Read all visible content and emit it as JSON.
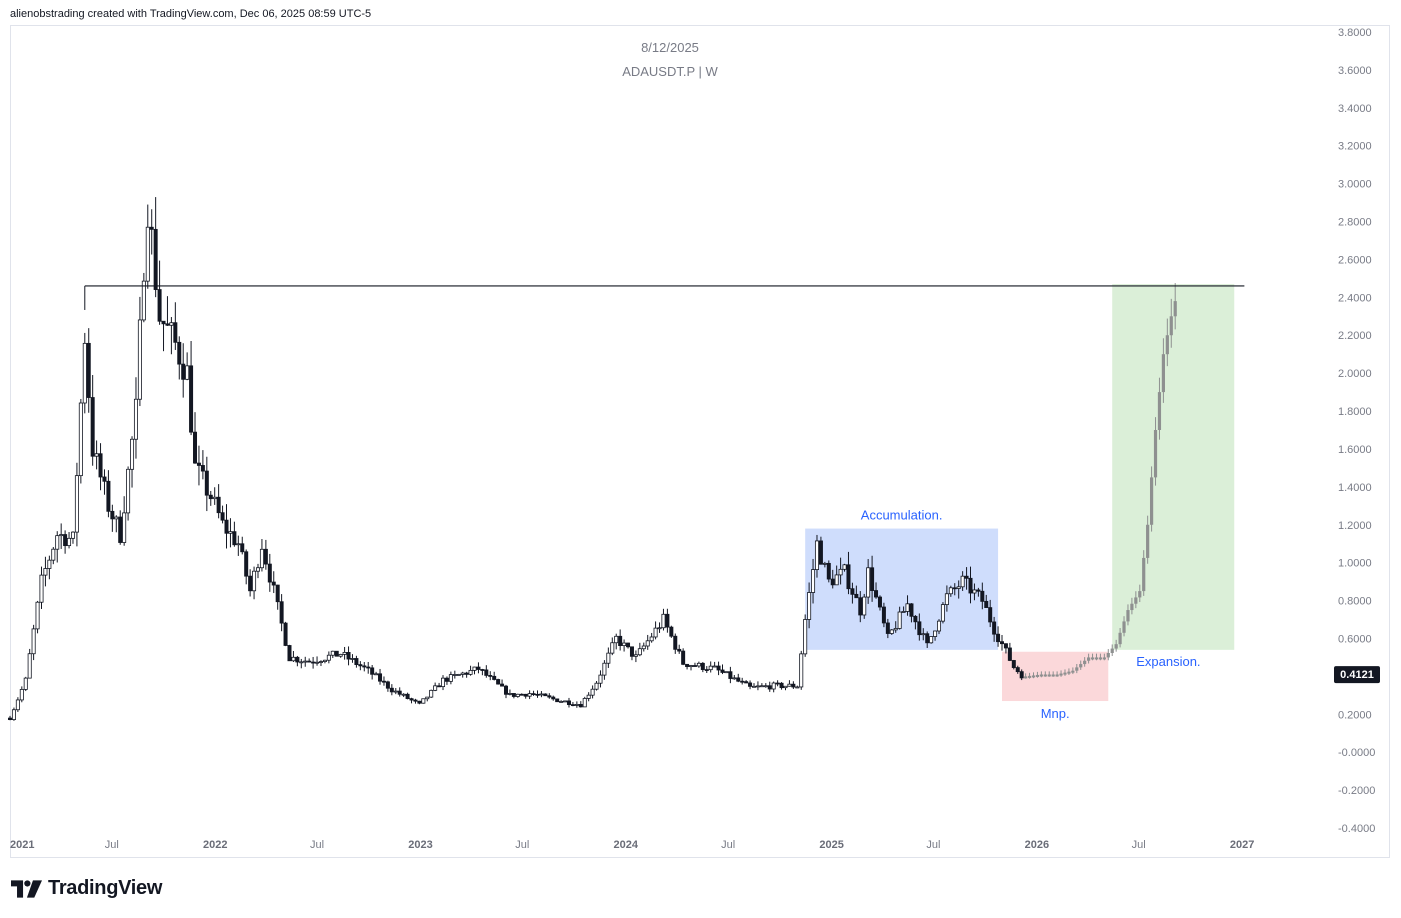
{
  "header": {
    "attribution": "alienobstrading created with TradingView.com, Dec 06, 2025 08:59 UTC-5"
  },
  "chart_title": {
    "date": "8/12/2025",
    "symbol": "ADAUSDT.P | W"
  },
  "branding": {
    "logo_text": "TradingView",
    "logo_icon": "tradingview-logo-icon"
  },
  "colors": {
    "candle": "#131722",
    "projection": "#8e9090",
    "accumulation_zone": "#bcd0fb",
    "manipulation_zone": "#f9c9cc",
    "expansion_zone": "#cfe9cb",
    "annotation": "#2962ff",
    "price_label_bg": "#131722"
  },
  "chart_data": {
    "type": "candlestick",
    "timeframe": "W",
    "symbol": "ADAUSDT.P",
    "y_axis": {
      "ylim": [
        -0.4,
        3.8
      ],
      "ticks": [
        "3.8000",
        "3.6000",
        "3.4000",
        "3.2000",
        "3.0000",
        "2.8000",
        "2.6000",
        "2.4000",
        "2.2000",
        "2.0000",
        "1.8000",
        "1.6000",
        "1.4000",
        "1.2000",
        "1.0000",
        "0.8000",
        "0.6000",
        "0.4000",
        "0.2000",
        "-0.0000",
        "-0.2000",
        "-0.4000"
      ]
    },
    "x_axis": {
      "range": [
        "2021-01-01",
        "2027-01-15"
      ],
      "ticks": [
        {
          "label": "2021",
          "date": "2021-01-01",
          "major": true
        },
        {
          "label": "Jul",
          "date": "2021-07-01",
          "major": false
        },
        {
          "label": "2022",
          "date": "2022-01-01",
          "major": true
        },
        {
          "label": "Jul",
          "date": "2022-07-01",
          "major": false
        },
        {
          "label": "2023",
          "date": "2023-01-01",
          "major": true
        },
        {
          "label": "Jul",
          "date": "2023-07-01",
          "major": false
        },
        {
          "label": "2024",
          "date": "2024-01-01",
          "major": true
        },
        {
          "label": "Jul",
          "date": "2024-07-01",
          "major": false
        },
        {
          "label": "2025",
          "date": "2025-01-01",
          "major": true
        },
        {
          "label": "Jul",
          "date": "2025-07-01",
          "major": false
        },
        {
          "label": "2026",
          "date": "2026-01-01",
          "major": true
        },
        {
          "label": "Jul",
          "date": "2026-07-01",
          "major": false
        },
        {
          "label": "2027",
          "date": "2027-01-01",
          "major": true
        }
      ]
    },
    "price_path_anchors": [
      [
        "2021-01-01",
        0.18
      ],
      [
        "2021-01-29",
        0.38
      ],
      [
        "2021-02-26",
        0.9
      ],
      [
        "2021-03-26",
        1.15
      ],
      [
        "2021-04-23",
        1.12
      ],
      [
        "2021-05-14",
        2.2
      ],
      [
        "2021-05-28",
        1.6
      ],
      [
        "2021-06-25",
        1.3
      ],
      [
        "2021-07-16",
        1.15
      ],
      [
        "2021-08-13",
        1.8
      ],
      [
        "2021-08-27",
        2.6
      ],
      [
        "2021-09-03",
        2.9
      ],
      [
        "2021-09-24",
        2.3
      ],
      [
        "2021-10-22",
        2.15
      ],
      [
        "2021-11-12",
        2.0
      ],
      [
        "2021-11-26",
        1.5
      ],
      [
        "2021-12-24",
        1.35
      ],
      [
        "2022-01-14",
        1.2
      ],
      [
        "2022-02-11",
        1.1
      ],
      [
        "2022-03-04",
        0.85
      ],
      [
        "2022-03-25",
        1.1
      ],
      [
        "2022-04-15",
        0.85
      ],
      [
        "2022-05-13",
        0.5
      ],
      [
        "2022-06-17",
        0.48
      ],
      [
        "2022-08-12",
        0.52
      ],
      [
        "2022-09-30",
        0.43
      ],
      [
        "2022-11-11",
        0.33
      ],
      [
        "2022-12-30",
        0.25
      ],
      [
        "2023-02-10",
        0.38
      ],
      [
        "2023-04-14",
        0.44
      ],
      [
        "2023-06-09",
        0.3
      ],
      [
        "2023-07-14",
        0.31
      ],
      [
        "2023-08-25",
        0.28
      ],
      [
        "2023-10-13",
        0.25
      ],
      [
        "2023-11-10",
        0.37
      ],
      [
        "2023-12-15",
        0.6
      ],
      [
        "2024-01-19",
        0.5
      ],
      [
        "2024-03-08",
        0.7
      ],
      [
        "2024-04-12",
        0.47
      ],
      [
        "2024-06-07",
        0.44
      ],
      [
        "2024-08-09",
        0.34
      ],
      [
        "2024-09-20",
        0.35
      ],
      [
        "2024-11-01",
        0.35
      ],
      [
        "2024-11-15",
        0.7
      ],
      [
        "2024-12-06",
        1.1
      ],
      [
        "2024-12-27",
        0.9
      ],
      [
        "2025-01-24",
        0.95
      ],
      [
        "2025-02-21",
        0.75
      ],
      [
        "2025-03-07",
        0.95
      ],
      [
        "2025-04-11",
        0.6
      ],
      [
        "2025-05-16",
        0.78
      ],
      [
        "2025-06-20",
        0.56
      ],
      [
        "2025-07-25",
        0.82
      ],
      [
        "2025-08-22",
        0.9
      ],
      [
        "2025-09-26",
        0.8
      ],
      [
        "2025-10-17",
        0.65
      ],
      [
        "2025-11-21",
        0.45
      ],
      [
        "2025-12-05",
        0.41
      ]
    ],
    "projection_path": [
      [
        "2025-12-12",
        0.4
      ],
      [
        "2026-01-09",
        0.41
      ],
      [
        "2026-02-06",
        0.41
      ],
      [
        "2026-03-06",
        0.43
      ],
      [
        "2026-04-03",
        0.5
      ],
      [
        "2026-05-01",
        0.5
      ],
      [
        "2026-05-22",
        0.57
      ],
      [
        "2026-06-12",
        0.75
      ],
      [
        "2026-07-03",
        0.85
      ],
      [
        "2026-07-17",
        1.2
      ],
      [
        "2026-07-31",
        1.7
      ],
      [
        "2026-08-14",
        2.1
      ],
      [
        "2026-08-28",
        2.3
      ],
      [
        "2026-09-04",
        2.38
      ]
    ],
    "horizontal_line": {
      "value": 2.46,
      "from": "2021-05-14",
      "to": "2027-01-05"
    },
    "zones": [
      {
        "label": "Accumulation.",
        "from": "2024-11-15",
        "to": "2025-10-24",
        "top": 1.18,
        "bottom": 0.54
      },
      {
        "label": "Mnp.",
        "from": "2025-10-31",
        "to": "2026-05-08",
        "top": 0.53,
        "bottom": 0.27
      },
      {
        "label": "Expansion.",
        "from": "2026-05-15",
        "to": "2026-12-18",
        "top": 2.47,
        "bottom": 0.54
      }
    ],
    "last_price": "0.4121"
  }
}
